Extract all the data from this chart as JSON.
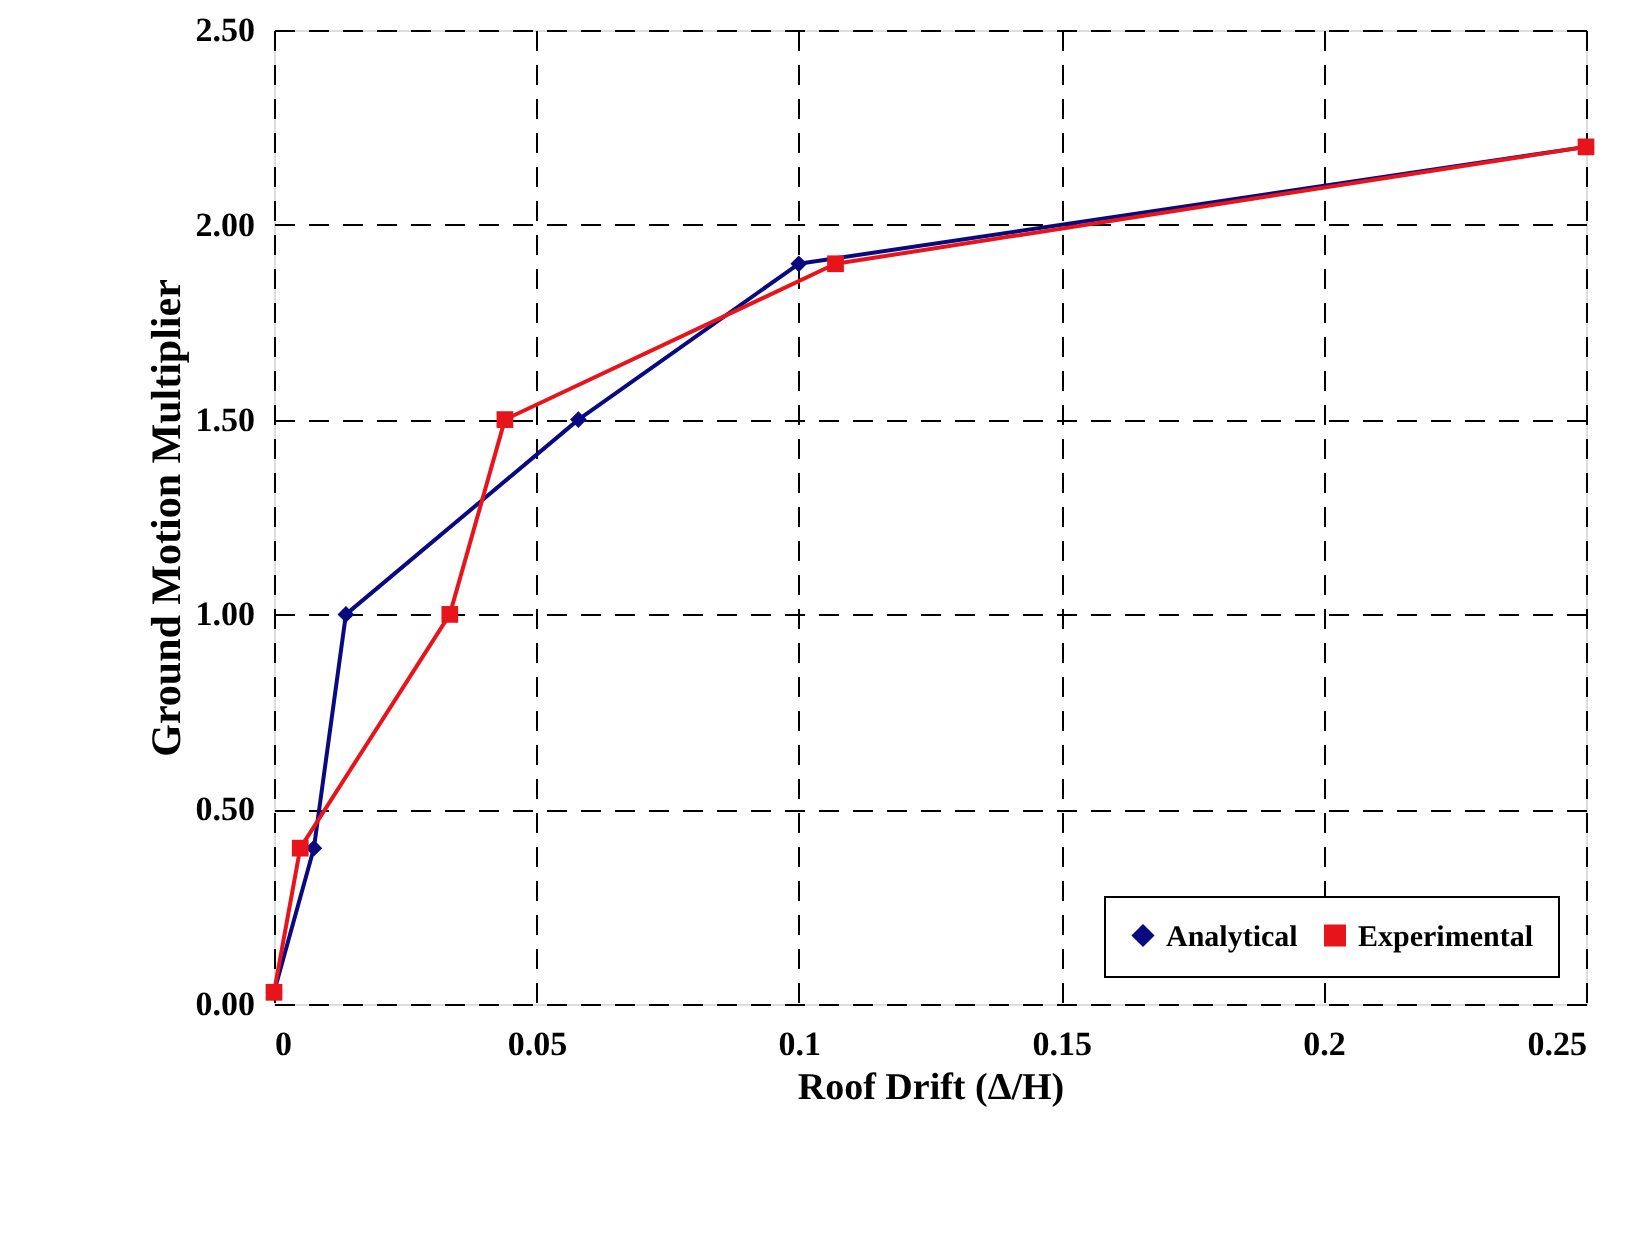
{
  "chart_data": {
    "type": "line",
    "xlabel": "Roof Drift (Δ/H)",
    "ylabel": "Ground Motion Multiplier",
    "xlim": [
      0,
      0.25
    ],
    "xticks": [
      0,
      0.05,
      0.1,
      0.15,
      0.2,
      0.25
    ],
    "ylim": [
      0,
      2.5
    ],
    "yticks": [
      {
        "value": 0,
        "label": "0.00"
      },
      {
        "value": 0.5,
        "label": "0.50"
      },
      {
        "value": 1,
        "label": "1.00"
      },
      {
        "value": 1.5,
        "label": "1.50"
      },
      {
        "value": 2,
        "label": "2.00"
      },
      {
        "value": 2.5,
        "label": "2.50"
      }
    ],
    "grid": true,
    "legend": "bottom right",
    "line_style": "solid",
    "series": [
      {
        "name": "Analytical",
        "color": "#0a0a80",
        "marker": "diamond",
        "x": [
          0,
          0.0076,
          0.0137,
          0.058,
          0.1,
          0.25
        ],
        "values": [
          0.03,
          0.4,
          1.0,
          1.5,
          1.9,
          2.2
        ]
      },
      {
        "name": "Experimental",
        "color": "#e8141c",
        "marker": "square",
        "x": [
          0,
          0.005,
          0.0335,
          0.044,
          0.107,
          0.25
        ],
        "values": [
          0.03,
          0.4,
          1.0,
          1.5,
          1.9,
          2.2
        ]
      }
    ]
  }
}
